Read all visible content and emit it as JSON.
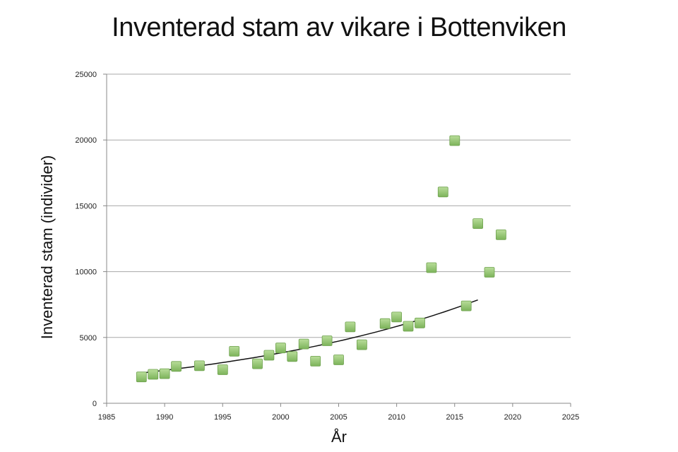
{
  "chart_data": {
    "type": "scatter",
    "title": "Inventerad stam av vikare i Bottenviken",
    "xlabel": "År",
    "ylabel": "Inventerad stam (individer)",
    "xlim": [
      1985,
      2025
    ],
    "ylim": [
      0,
      25000
    ],
    "xticks": [
      "1985",
      "1990",
      "1995",
      "2000",
      "2005",
      "2010",
      "2015",
      "2020",
      "2025"
    ],
    "yticks": [
      "0",
      "5000",
      "10000",
      "15000",
      "20000",
      "25000"
    ],
    "grid": "horizontal",
    "series": [
      {
        "marker": "square",
        "color": "#8cc06c",
        "points": [
          [
            1988,
            2000
          ],
          [
            1989,
            2200
          ],
          [
            1990,
            2250
          ],
          [
            1991,
            2800
          ],
          [
            1993,
            2850
          ],
          [
            1995,
            2550
          ],
          [
            1996,
            3950
          ],
          [
            1998,
            3000
          ],
          [
            1999,
            3650
          ],
          [
            2000,
            4200
          ],
          [
            2001,
            3550
          ],
          [
            2002,
            4500
          ],
          [
            2003,
            3200
          ],
          [
            2004,
            4750
          ],
          [
            2005,
            3300
          ],
          [
            2006,
            5800
          ],
          [
            2007,
            4450
          ],
          [
            2009,
            6050
          ],
          [
            2010,
            6550
          ],
          [
            2011,
            5850
          ],
          [
            2012,
            6100
          ],
          [
            2013,
            10300
          ],
          [
            2014,
            16050
          ],
          [
            2015,
            19950
          ],
          [
            2016,
            7400
          ],
          [
            2017,
            13650
          ],
          [
            2018,
            9950
          ],
          [
            2019,
            12800
          ]
        ]
      }
    ],
    "trendline": {
      "type": "exponential",
      "color": "#111111",
      "x_range": [
        1988,
        2017
      ],
      "y_start": 2300,
      "y_end": 7850
    }
  }
}
